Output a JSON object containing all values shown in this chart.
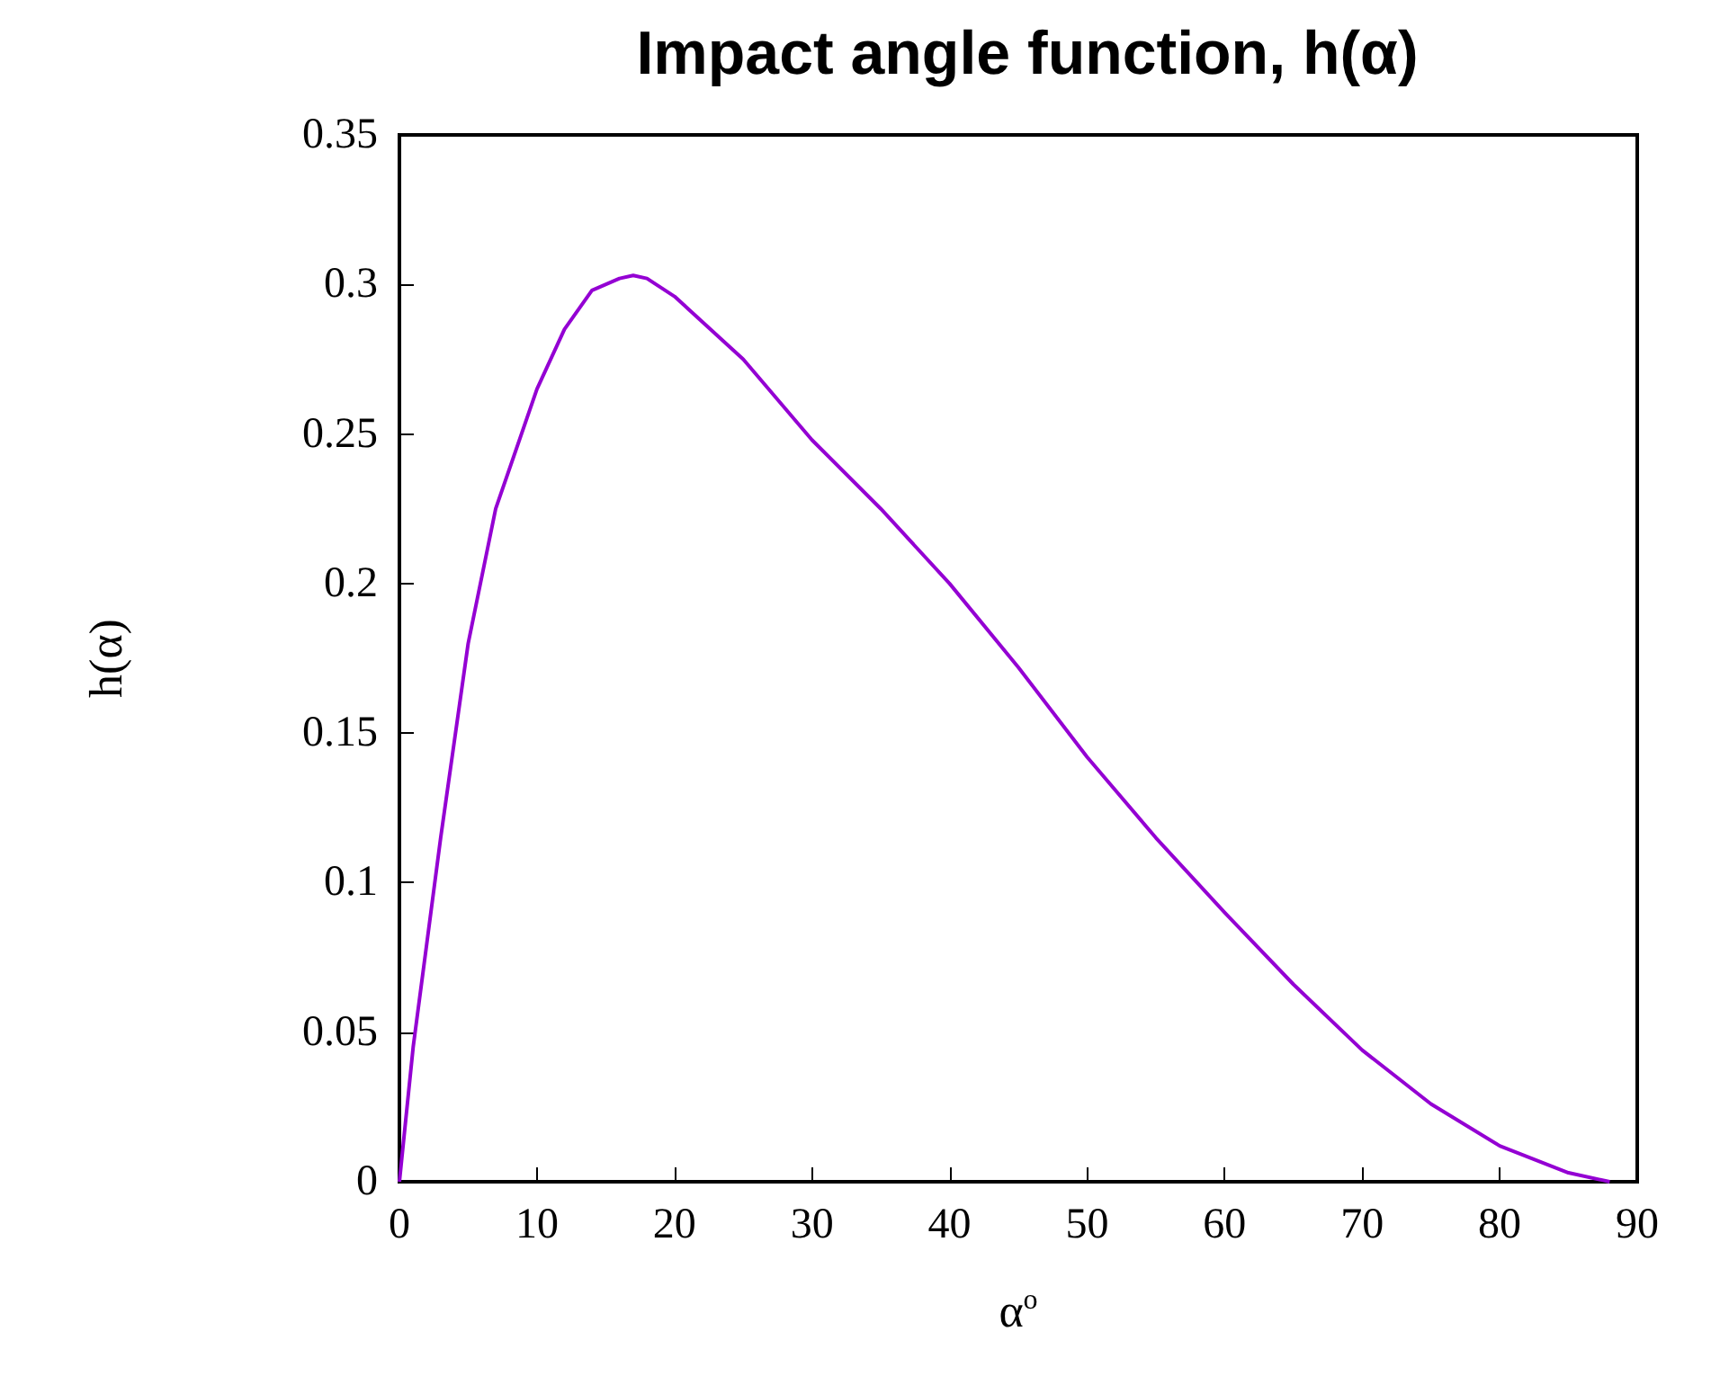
{
  "chart_data": {
    "type": "line",
    "title": "Impact angle function, h(α)",
    "xlabel": "α$^{o}$",
    "ylabel": "h(α)",
    "x": [
      0,
      1,
      2,
      3,
      5,
      7,
      10,
      12,
      14,
      16,
      17,
      18,
      20,
      25,
      30,
      35,
      40,
      45,
      50,
      55,
      60,
      65,
      70,
      75,
      80,
      85,
      88
    ],
    "series": [
      {
        "color": "#9400d3",
        "values": [
          0,
          0.045,
          0.08,
          0.115,
          0.18,
          0.225,
          0.265,
          0.285,
          0.298,
          0.302,
          0.303,
          0.302,
          0.296,
          0.275,
          0.248,
          0.225,
          0.2,
          0.172,
          0.142,
          0.115,
          0.09,
          0.066,
          0.044,
          0.026,
          0.012,
          0.003,
          0
        ]
      }
    ],
    "xlim": [
      0,
      90
    ],
    "xticks": [
      0,
      10,
      20,
      30,
      40,
      50,
      60,
      70,
      80,
      90
    ],
    "ylim": [
      0,
      0.35
    ],
    "yticks": [
      0,
      0.05,
      0.1,
      0.15,
      0.2,
      0.25,
      0.3,
      0.35
    ],
    "grid": false,
    "marker": "none",
    "line_style": "solid"
  }
}
